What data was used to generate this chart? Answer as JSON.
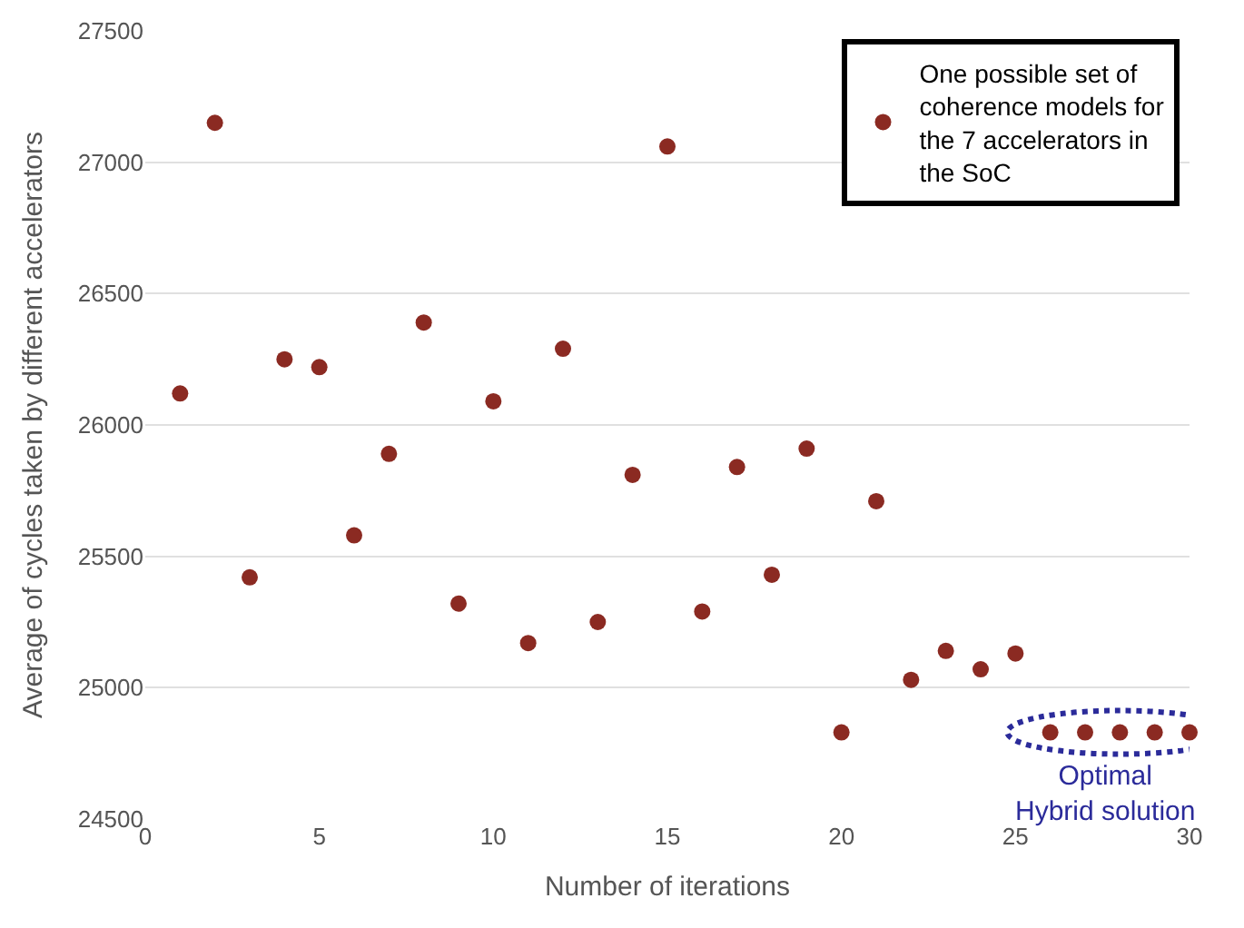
{
  "chart_data": {
    "type": "scatter",
    "xlabel": "Number of iterations",
    "ylabel": "Average of cycles taken by different accelerators",
    "x": [
      1,
      2,
      3,
      4,
      5,
      6,
      7,
      8,
      9,
      10,
      11,
      12,
      13,
      14,
      15,
      16,
      17,
      18,
      19,
      20,
      21,
      22,
      23,
      24,
      25,
      26,
      27,
      28,
      29,
      30
    ],
    "series": [
      {
        "name": "One possible set of coherence models for the 7 accelerators in the SoC",
        "color": "#8b2a22",
        "values": [
          26120,
          27150,
          25420,
          26250,
          26220,
          25580,
          25890,
          26390,
          25320,
          26090,
          25170,
          26290,
          25250,
          25810,
          27060,
          25290,
          25840,
          25430,
          25910,
          24830,
          25710,
          25030,
          25140,
          25070,
          25130,
          24830,
          24830,
          24830,
          24830,
          24830
        ]
      }
    ],
    "xlim": [
      0,
      30
    ],
    "xticks": [
      0,
      5,
      10,
      15,
      20,
      25,
      30
    ],
    "ylim": [
      24500,
      27500
    ],
    "yticks": [
      24500,
      25000,
      25500,
      26000,
      26500,
      27000,
      27500
    ],
    "grid": "y",
    "legend": "top right",
    "marker": "circle",
    "annotations": [
      {
        "text": "Optimal\nHybrid solution",
        "x": 28,
        "y": 24830
      }
    ]
  }
}
